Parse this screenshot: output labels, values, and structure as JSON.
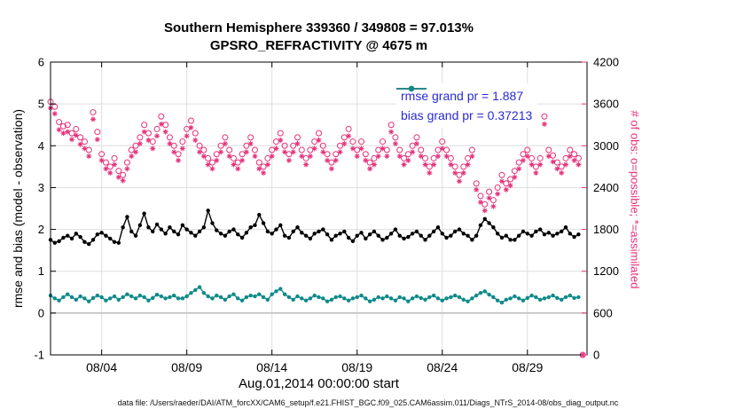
{
  "chart_data": {
    "type": "line",
    "title": "Southern Hemisphere 339360 / 349808 = 97.013%",
    "subtitle": "GPSRO_REFRACTIVITY @ 4675 m",
    "xlabel": "Aug.01,2014 00:00:00 start",
    "ylabel_left": "rmse and bias (model - observation)",
    "ylabel_right": "# of obs: o=possible; *=assimilated",
    "caption": "data file: /Users/raeder/DAI/ATM_forcXX/CAM6_setup/f.e21.FHIST_BGC.f09_025.CAM6assim.011/Diags_NTrS_2014-08/obs_diag_output.nc",
    "grid": true,
    "legend_position": "top-right-inside",
    "xlim": [
      0,
      31.5
    ],
    "x_step_days": 0.25,
    "x_ticks": {
      "days": [
        3,
        8,
        13,
        18,
        23,
        28
      ],
      "labels": [
        "08/04",
        "08/09",
        "08/14",
        "08/19",
        "08/24",
        "08/29"
      ]
    },
    "ylim_left": [
      -1,
      6
    ],
    "yticks_left": [
      -1,
      0,
      1,
      2,
      3,
      4,
      5,
      6
    ],
    "ylim_right": [
      0,
      4200
    ],
    "yticks_right": [
      0,
      600,
      1200,
      1800,
      2400,
      3000,
      3600,
      4200
    ],
    "colors": {
      "rmse": "#000000",
      "bias": "#108a8a",
      "obs": "#e6307a",
      "legend_text": "#2929d6",
      "grid": "#dedede",
      "zero_line": "#c0c0c0"
    },
    "legend": [
      {
        "series": "rmse",
        "label": "rmse grand pr = 1.887"
      },
      {
        "series": "bias",
        "label": "bias grand pr = 0.37213"
      }
    ],
    "series": {
      "rmse": {
        "axis": "left",
        "marker": "filled-dot",
        "grand_mean": 1.887,
        "values": [
          1.75,
          1.68,
          1.72,
          1.8,
          1.85,
          1.78,
          1.9,
          1.82,
          1.7,
          1.65,
          1.75,
          1.88,
          1.92,
          1.85,
          1.78,
          1.7,
          1.68,
          2.05,
          2.3,
          1.95,
          1.85,
          2.1,
          2.38,
          2.05,
          1.95,
          2.12,
          2.0,
          1.9,
          2.05,
          1.95,
          1.88,
          2.1,
          2.0,
          1.92,
          1.85,
          1.95,
          2.05,
          2.45,
          2.15,
          1.98,
          1.9,
          1.85,
          1.95,
          2.0,
          1.88,
          1.8,
          1.92,
          2.05,
          2.1,
          2.35,
          2.15,
          1.95,
          1.9,
          2.0,
          2.1,
          1.85,
          1.8,
          1.95,
          2.05,
          1.92,
          1.85,
          1.78,
          1.9,
          1.95,
          2.0,
          1.88,
          1.75,
          1.85,
          1.9,
          1.95,
          1.8,
          1.72,
          1.85,
          1.92,
          1.78,
          1.88,
          1.95,
          1.85,
          1.75,
          1.8,
          1.9,
          2.0,
          1.85,
          1.78,
          1.82,
          1.9,
          1.95,
          1.85,
          1.75,
          1.85,
          1.95,
          2.05,
          1.9,
          1.8,
          1.85,
          1.95,
          2.0,
          1.9,
          1.85,
          1.75,
          1.85,
          2.1,
          2.25,
          2.15,
          2.05,
          1.9,
          1.8,
          1.85,
          1.75,
          1.75,
          1.85,
          1.95,
          1.9,
          1.85,
          1.95,
          2.0,
          1.88,
          1.92,
          1.85,
          1.9,
          1.95,
          2.05,
          1.9,
          1.82,
          1.88,
          null
        ]
      },
      "bias": {
        "axis": "left",
        "marker": "filled-dot",
        "grand_mean": 0.37213,
        "values": [
          0.42,
          0.35,
          0.3,
          0.38,
          0.45,
          0.38,
          0.32,
          0.4,
          0.35,
          0.28,
          0.36,
          0.42,
          0.38,
          0.3,
          0.35,
          0.4,
          0.32,
          0.38,
          0.45,
          0.4,
          0.35,
          0.42,
          0.38,
          0.3,
          0.36,
          0.44,
          0.4,
          0.35,
          0.38,
          0.42,
          0.35,
          0.35,
          0.4,
          0.48,
          0.55,
          0.62,
          0.48,
          0.4,
          0.35,
          0.42,
          0.38,
          0.32,
          0.4,
          0.45,
          0.35,
          0.3,
          0.38,
          0.42,
          0.4,
          0.45,
          0.38,
          0.32,
          0.45,
          0.52,
          0.58,
          0.45,
          0.38,
          0.32,
          0.4,
          0.35,
          0.3,
          0.35,
          0.42,
          0.38,
          0.35,
          0.28,
          0.32,
          0.38,
          0.4,
          0.35,
          0.3,
          0.35,
          0.38,
          0.42,
          0.35,
          0.28,
          0.32,
          0.38,
          0.35,
          0.4,
          0.35,
          0.3,
          0.38,
          0.35,
          0.28,
          0.35,
          0.4,
          0.36,
          0.32,
          0.38,
          0.42,
          0.35,
          0.3,
          0.35,
          0.38,
          0.42,
          0.38,
          0.32,
          0.28,
          0.35,
          0.42,
          0.48,
          0.52,
          0.44,
          0.38,
          0.3,
          0.25,
          0.32,
          0.35,
          0.4,
          0.35,
          0.3,
          0.36,
          0.42,
          0.38,
          0.32,
          0.35,
          0.38,
          0.42,
          0.36,
          0.32,
          0.38,
          0.42,
          0.36,
          0.38,
          null
        ]
      },
      "possible": {
        "axis": "right",
        "marker": "open-circle",
        "total": 349808,
        "values": [
          3630,
          3560,
          3340,
          3280,
          3300,
          3180,
          3240,
          3120,
          3060,
          2940,
          3480,
          3200,
          2880,
          2760,
          2700,
          2820,
          2640,
          2580,
          2760,
          2940,
          3000,
          3120,
          3300,
          3180,
          3060,
          3240,
          3420,
          3300,
          3120,
          3000,
          2880,
          3060,
          3240,
          3360,
          3180,
          3000,
          2940,
          2820,
          2760,
          2880,
          3000,
          3120,
          2940,
          2820,
          2760,
          2880,
          3000,
          3120,
          2940,
          2760,
          2700,
          2820,
          2940,
          3060,
          3180,
          3000,
          2880,
          3000,
          3120,
          2940,
          2820,
          2940,
          3060,
          3180,
          3000,
          2880,
          2760,
          2880,
          3000,
          3120,
          3240,
          3060,
          2940,
          3060,
          2880,
          2760,
          2820,
          2940,
          3060,
          2940,
          3300,
          3120,
          2940,
          2820,
          2880,
          3000,
          3120,
          2940,
          2820,
          2700,
          2820,
          2940,
          3060,
          2940,
          2820,
          2700,
          2580,
          2700,
          2820,
          2940,
          2460,
          2280,
          2160,
          2340,
          2220,
          2400,
          2580,
          2460,
          2520,
          2640,
          2760,
          2880,
          2940,
          2820,
          2700,
          2820,
          3420,
          2940,
          2860,
          2760,
          2700,
          2820,
          2940,
          2880,
          2820,
          0
        ]
      },
      "assimilated": {
        "axis": "right",
        "marker": "asterisk",
        "total": 339360,
        "values": [
          3540,
          3460,
          3230,
          3180,
          3200,
          3090,
          3150,
          3020,
          2960,
          2850,
          3380,
          3090,
          2790,
          2670,
          2610,
          2730,
          2550,
          2500,
          2670,
          2850,
          2910,
          3030,
          3200,
          3080,
          2960,
          3140,
          3310,
          3200,
          3030,
          2910,
          2790,
          2960,
          3140,
          3260,
          3080,
          2910,
          2850,
          2730,
          2670,
          2790,
          2910,
          3030,
          2850,
          2730,
          2670,
          2790,
          2910,
          3030,
          2850,
          2670,
          2610,
          2730,
          2850,
          2960,
          3080,
          2910,
          2790,
          2910,
          3030,
          2850,
          2730,
          2850,
          2960,
          3080,
          2910,
          2790,
          2670,
          2790,
          2910,
          3030,
          3140,
          2960,
          2850,
          2960,
          2790,
          2670,
          2730,
          2850,
          2960,
          2850,
          3200,
          3030,
          2850,
          2730,
          2790,
          2910,
          3030,
          2850,
          2730,
          2610,
          2730,
          2850,
          2960,
          2850,
          2730,
          2610,
          2490,
          2610,
          2730,
          2850,
          2370,
          2190,
          2070,
          2250,
          2130,
          2310,
          2490,
          2370,
          2430,
          2550,
          2670,
          2790,
          2850,
          2730,
          2610,
          2730,
          3310,
          2850,
          2770,
          2670,
          2610,
          2730,
          2850,
          2790,
          2730,
          0
        ]
      }
    }
  }
}
